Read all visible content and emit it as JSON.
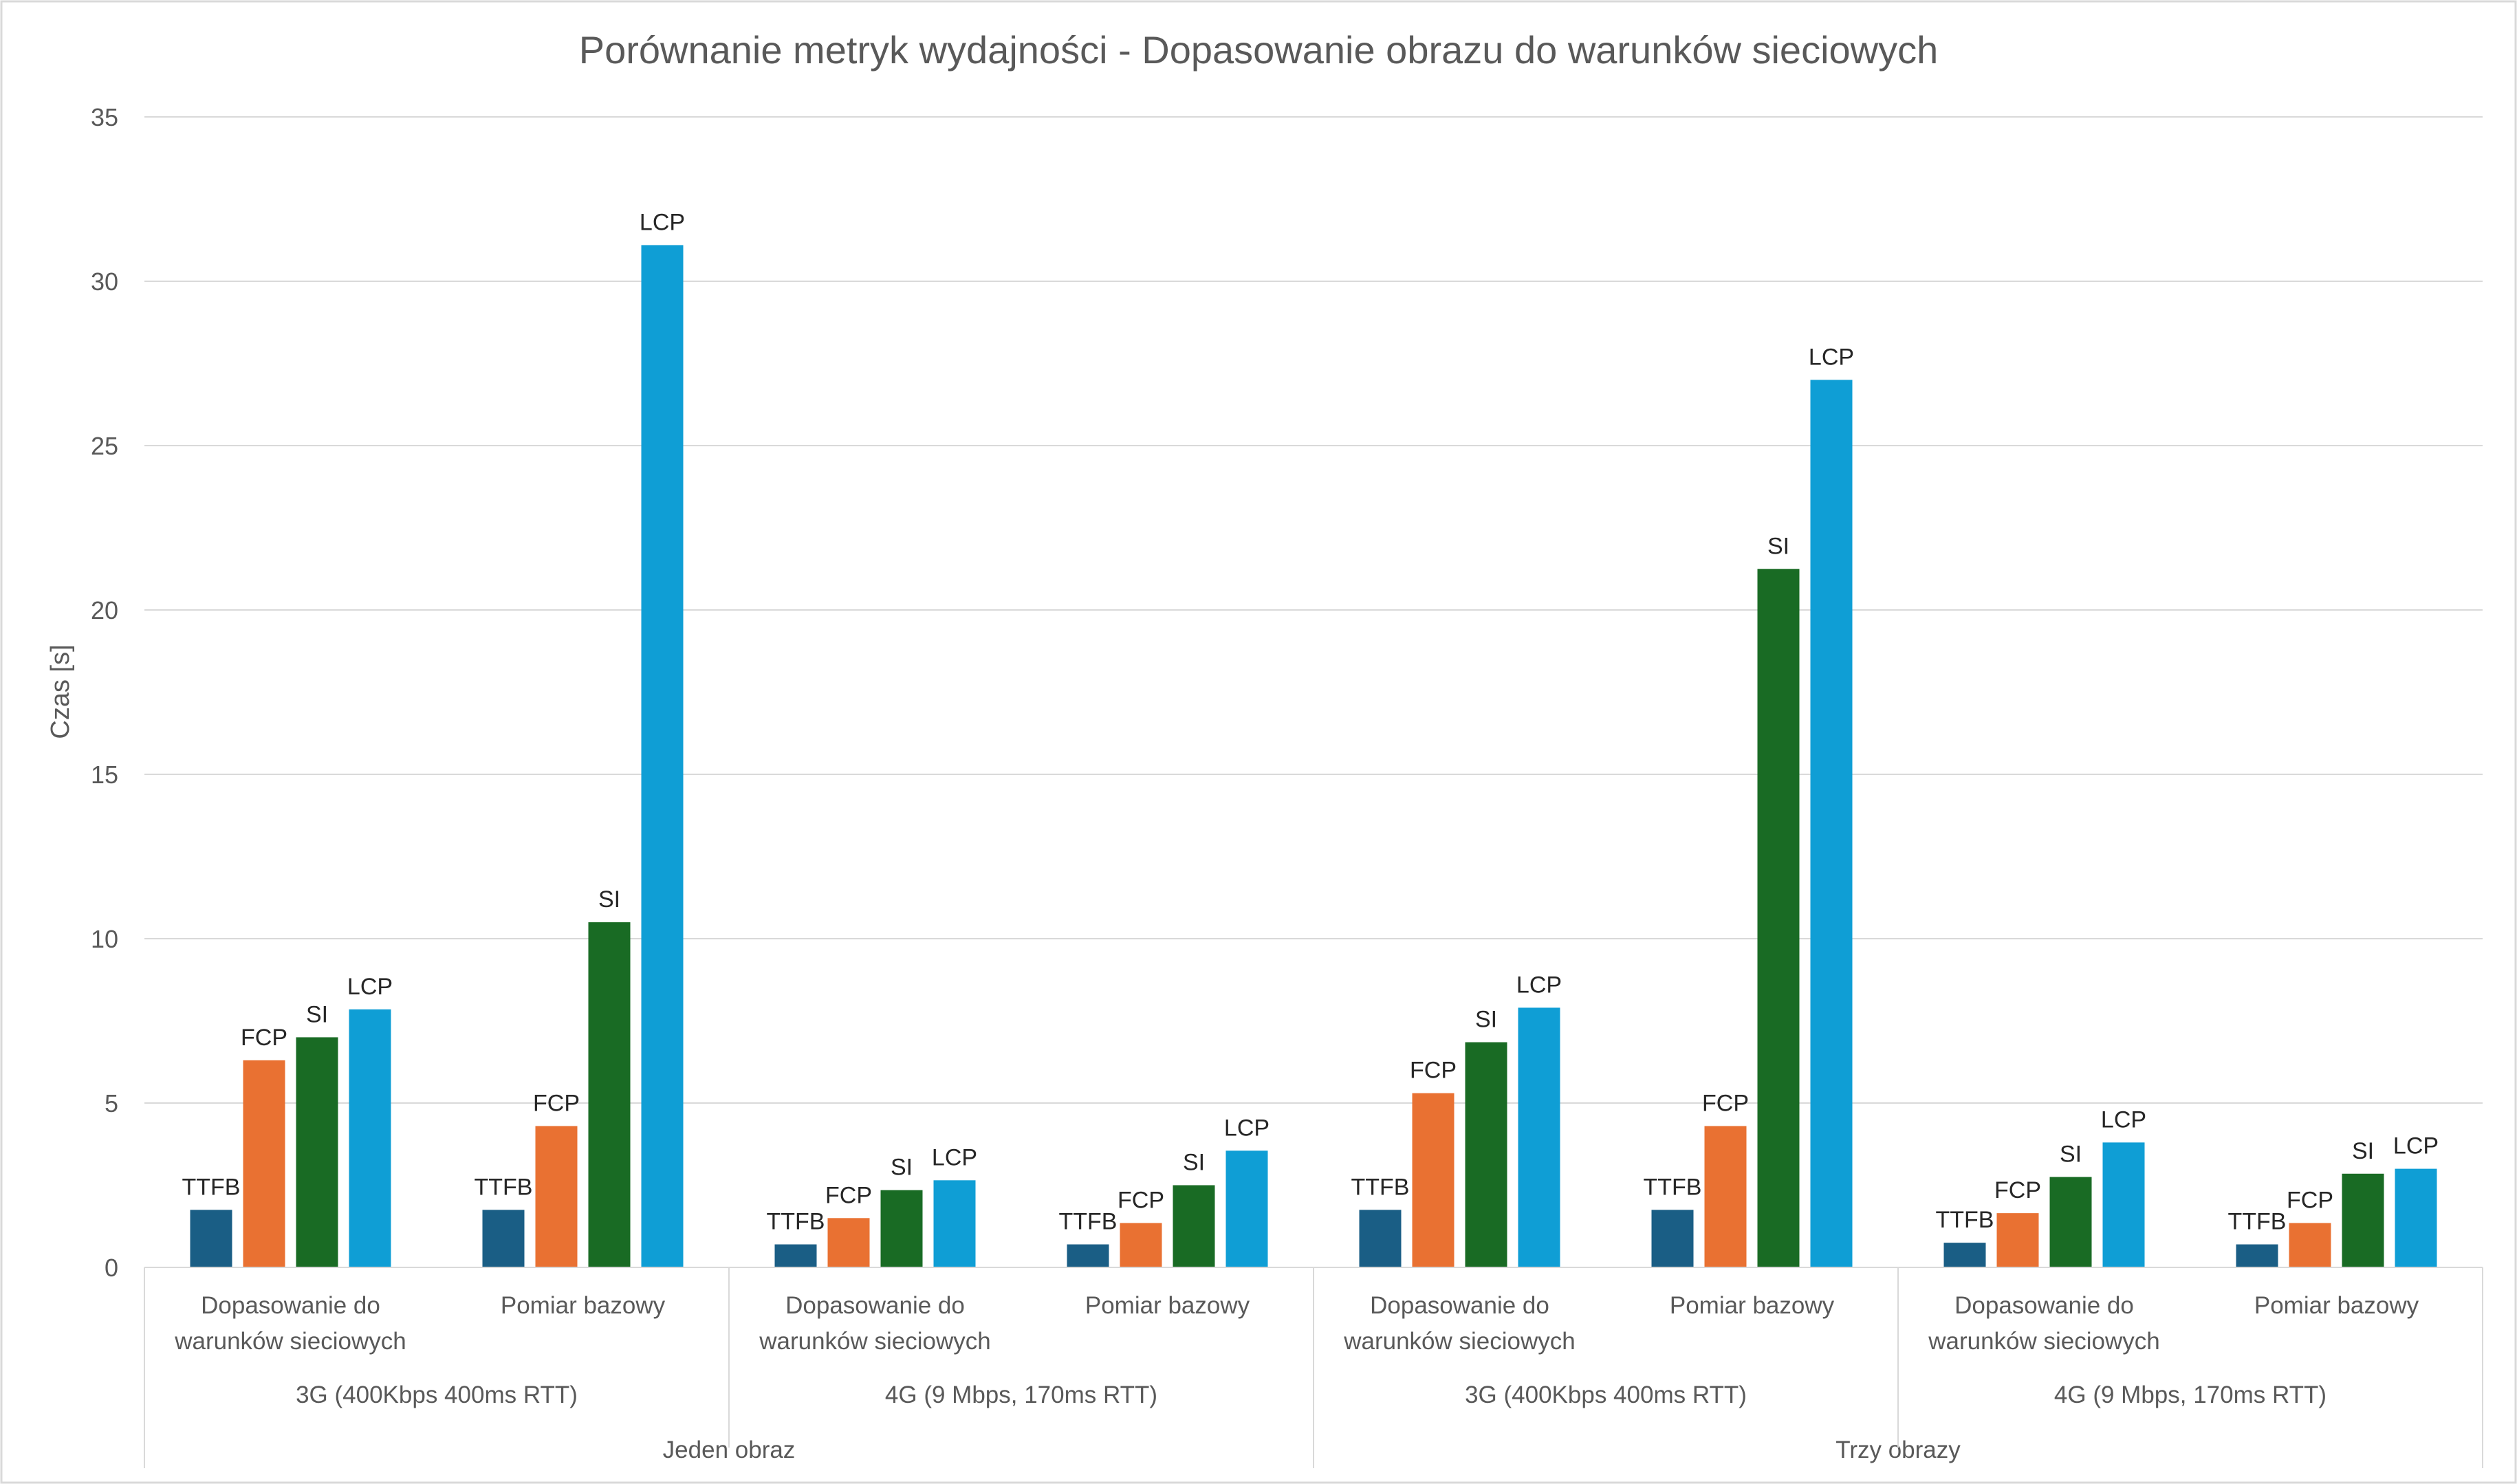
{
  "chart_data": {
    "type": "bar",
    "title": "Porównanie metryk wydajności - Dopasowanie obrazu do warunków sieciowych",
    "ylabel": "Czas [s]",
    "xlabel": "",
    "ylim": [
      0,
      35
    ],
    "yticks": [
      0,
      5,
      10,
      15,
      20,
      25,
      30,
      35
    ],
    "grid": true,
    "legend": "none",
    "metrics": [
      "TTFB",
      "FCP",
      "SI",
      "LCP"
    ],
    "colors": {
      "TTFB": "#1a5e85",
      "FCP": "#e97132",
      "SI": "#196b24",
      "LCP": "#0f9ed5"
    },
    "groups": [
      {
        "label": "Jeden obraz",
        "subgroups": [
          {
            "label": "3G (400Kbps 400ms RTT)",
            "categories": [
              {
                "label": [
                  "Dopasowanie do",
                  "warunków sieciowych"
                ],
                "values": [
                  1.75,
                  6.3,
                  7.0,
                  7.85
                ]
              },
              {
                "label": [
                  "Pomiar bazowy"
                ],
                "values": [
                  1.75,
                  4.3,
                  10.5,
                  31.1
                ]
              }
            ]
          },
          {
            "label": "4G (9 Mbps, 170ms RTT)",
            "categories": [
              {
                "label": [
                  "Dopasowanie do",
                  "warunków sieciowych"
                ],
                "values": [
                  0.7,
                  1.5,
                  2.35,
                  2.65
                ]
              },
              {
                "label": [
                  "Pomiar bazowy"
                ],
                "values": [
                  0.7,
                  1.35,
                  2.5,
                  3.55
                ]
              }
            ]
          }
        ]
      },
      {
        "label": "Trzy obrazy",
        "subgroups": [
          {
            "label": "3G (400Kbps 400ms RTT)",
            "categories": [
              {
                "label": [
                  "Dopasowanie do",
                  "warunków sieciowych"
                ],
                "values": [
                  1.75,
                  5.3,
                  6.85,
                  7.9
                ]
              },
              {
                "label": [
                  "Pomiar bazowy"
                ],
                "values": [
                  1.75,
                  4.3,
                  21.25,
                  27.0
                ]
              }
            ]
          },
          {
            "label": "4G (9 Mbps, 170ms RTT)",
            "categories": [
              {
                "label": [
                  "Dopasowanie do",
                  "warunków sieciowych"
                ],
                "values": [
                  0.75,
                  1.65,
                  2.75,
                  3.8
                ]
              },
              {
                "label": [
                  "Pomiar bazowy"
                ],
                "values": [
                  0.7,
                  1.35,
                  2.85,
                  3.0
                ]
              }
            ]
          }
        ]
      }
    ]
  }
}
